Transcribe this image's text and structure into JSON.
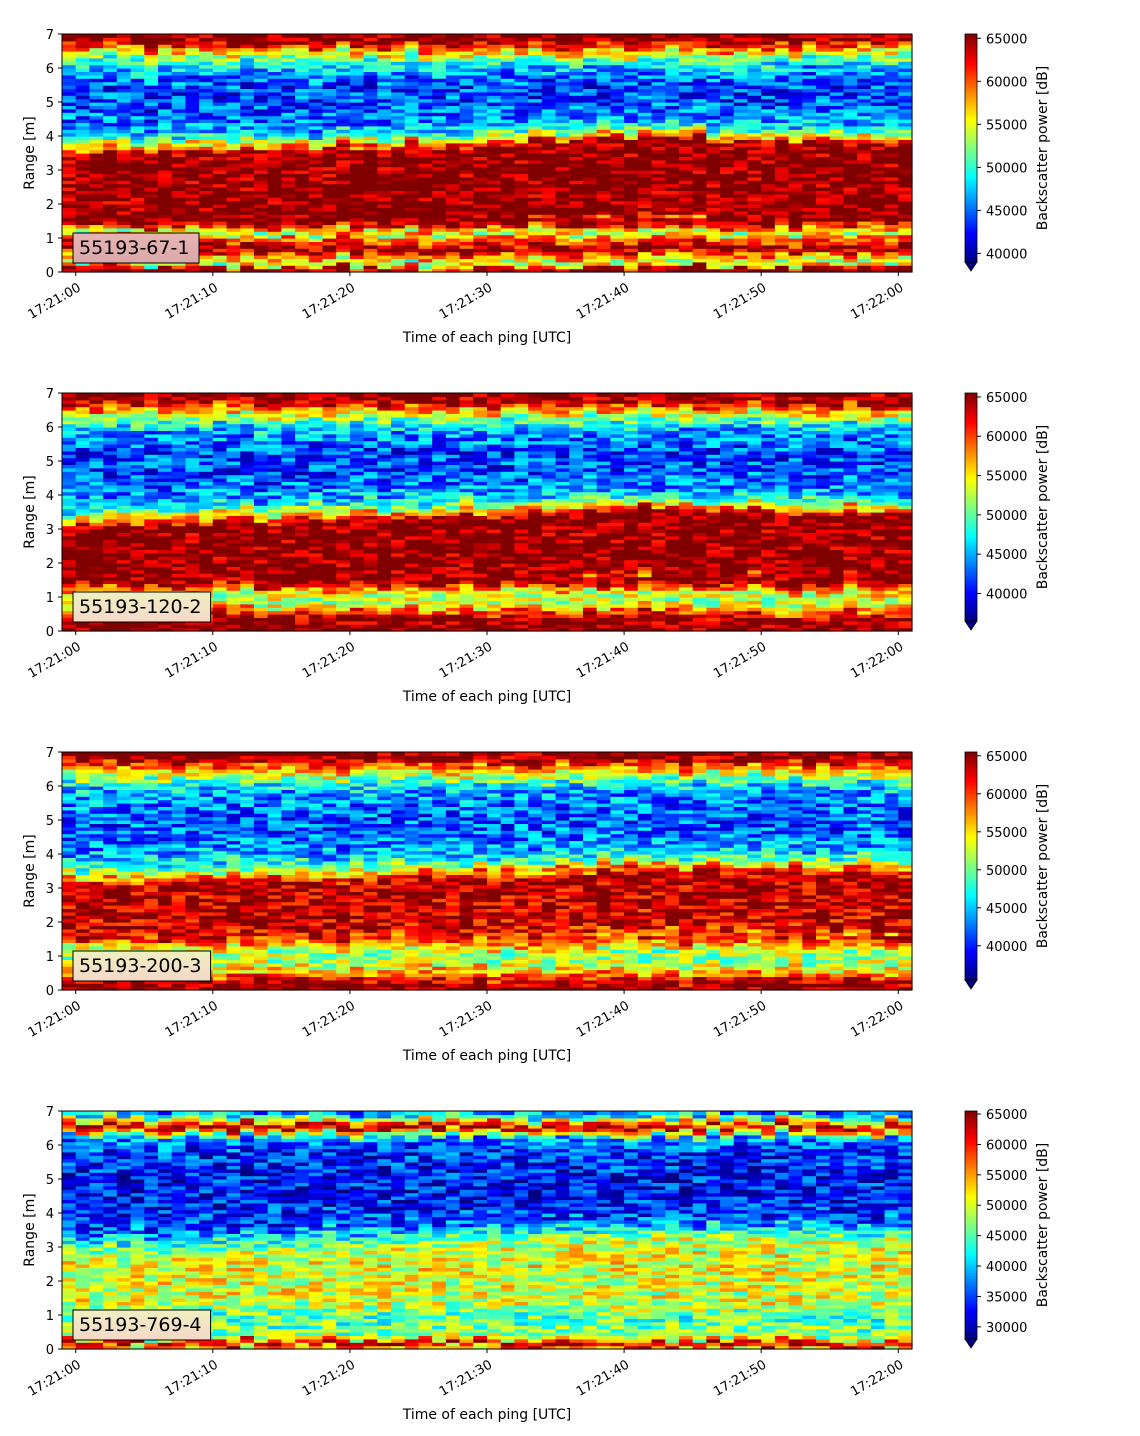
{
  "figure": {
    "colormap": "jet",
    "panels": [
      {
        "label": "55193-67-1",
        "xlabel": "Time of each ping [UTC]",
        "ylabel": "Range [m]",
        "cbar_label": "Backscatter power [dB]"
      },
      {
        "label": "55193-120-2",
        "xlabel": "Time of each ping [UTC]",
        "ylabel": "Range [m]",
        "cbar_label": "Backscatter power [dB]"
      },
      {
        "label": "55193-200-3",
        "xlabel": "Time of each ping [UTC]",
        "ylabel": "Range [m]",
        "cbar_label": "Backscatter power [dB]"
      },
      {
        "label": "55193-769-4",
        "xlabel": "Time of each ping [UTC]",
        "ylabel": "Range [m]",
        "cbar_label": "Backscatter power [dB]"
      }
    ]
  },
  "chart_data": [
    {
      "type": "heatmap",
      "xlabel": "Time of each ping [UTC]",
      "ylabel": "Range [m]",
      "x_ticks": [
        "17:21:00",
        "17:21:10",
        "17:21:20",
        "17:21:30",
        "17:21:40",
        "17:21:50",
        "17:22:00"
      ],
      "xlim_seconds": [
        -1,
        61
      ],
      "y_ticks": [
        0,
        1,
        2,
        3,
        4,
        5,
        6,
        7
      ],
      "ylim": [
        0,
        7
      ],
      "colorbar": {
        "label": "Backscatter power [dB]",
        "ticks": [
          40000,
          45000,
          50000,
          55000,
          60000,
          65000
        ],
        "range": [
          39000,
          65500
        ]
      },
      "annotation": "55193-67-1",
      "range_profile": {
        "range_m": [
          0.1,
          0.25,
          0.7,
          1.05,
          1.15,
          1.25,
          1.45,
          2.4,
          3.35,
          3.55,
          3.8,
          4.1,
          4.8,
          5.4,
          5.9,
          6.3,
          6.55,
          6.8,
          7.0
        ],
        "power": [
          65500,
          52000,
          65500,
          58000,
          53000,
          57000,
          65500,
          65500,
          65500,
          59000,
          51000,
          46500,
          44000,
          44000,
          47000,
          52000,
          58000,
          65500,
          65500
        ]
      },
      "band_edges_over_time": {
        "seconds": [
          0,
          30,
          40,
          60
        ],
        "edge_m": [
          3.45,
          3.8,
          4.1,
          3.75
        ]
      }
    },
    {
      "type": "heatmap",
      "xlabel": "Time of each ping [UTC]",
      "ylabel": "Range [m]",
      "x_ticks": [
        "17:21:00",
        "17:21:10",
        "17:21:20",
        "17:21:30",
        "17:21:40",
        "17:21:50",
        "17:22:00"
      ],
      "xlim_seconds": [
        -1,
        61
      ],
      "y_ticks": [
        0,
        1,
        2,
        3,
        4,
        5,
        6,
        7
      ],
      "ylim": [
        0,
        7
      ],
      "colorbar": {
        "label": "Backscatter power [dB]",
        "ticks": [
          40000,
          45000,
          50000,
          55000,
          60000,
          65000
        ],
        "range": [
          36500,
          65500
        ]
      },
      "annotation": "55193-120-2",
      "range_profile": {
        "range_m": [
          0.1,
          0.25,
          0.45,
          0.75,
          1.0,
          1.25,
          1.45,
          2.2,
          3.05,
          3.25,
          3.5,
          3.8,
          4.5,
          5.2,
          5.9,
          6.3,
          6.55,
          6.8,
          7.0
        ],
        "power": [
          65500,
          65500,
          64000,
          55000,
          52000,
          57000,
          65500,
          65500,
          65500,
          58000,
          50000,
          45000,
          42000,
          42000,
          45000,
          52000,
          58000,
          65500,
          65500
        ]
      },
      "band_edges_over_time": {
        "seconds": [
          0,
          30,
          40,
          60
        ],
        "edge_m": [
          3.1,
          3.4,
          3.65,
          3.5
        ]
      }
    },
    {
      "type": "heatmap",
      "xlabel": "Time of each ping [UTC]",
      "ylabel": "Range [m]",
      "x_ticks": [
        "17:21:00",
        "17:21:10",
        "17:21:20",
        "17:21:30",
        "17:21:40",
        "17:21:50",
        "17:22:00"
      ],
      "xlim_seconds": [
        -1,
        61
      ],
      "y_ticks": [
        0,
        1,
        2,
        3,
        4,
        5,
        6,
        7
      ],
      "ylim": [
        0,
        7
      ],
      "colorbar": {
        "label": "Backscatter power [dB]",
        "ticks": [
          40000,
          45000,
          50000,
          55000,
          60000,
          65000
        ],
        "range": [
          35500,
          65500
        ]
      },
      "annotation": "55193-200-3",
      "range_profile": {
        "range_m": [
          0.1,
          0.25,
          0.45,
          0.8,
          1.1,
          1.35,
          1.6,
          2.3,
          3.0,
          3.25,
          3.5,
          3.8,
          4.5,
          5.2,
          5.9,
          6.3,
          6.55,
          6.8,
          7.0
        ],
        "power": [
          65500,
          64000,
          58000,
          52000,
          51000,
          57000,
          63000,
          63500,
          64000,
          57000,
          50000,
          45000,
          42000,
          42000,
          45000,
          52000,
          58000,
          65500,
          65500
        ]
      },
      "band_edges_over_time": {
        "seconds": [
          0,
          30,
          40,
          60
        ],
        "edge_m": [
          3.05,
          3.35,
          3.55,
          3.45
        ]
      }
    },
    {
      "type": "heatmap",
      "xlabel": "Time of each ping [UTC]",
      "ylabel": "Range [m]",
      "x_ticks": [
        "17:21:00",
        "17:21:10",
        "17:21:20",
        "17:21:30",
        "17:21:40",
        "17:21:50",
        "17:22:00"
      ],
      "xlim_seconds": [
        -1,
        61
      ],
      "y_ticks": [
        0,
        1,
        2,
        3,
        4,
        5,
        6,
        7
      ],
      "ylim": [
        0,
        7
      ],
      "colorbar": {
        "label": "Backscatter power [dB]",
        "ticks": [
          30000,
          35000,
          40000,
          45000,
          50000,
          55000,
          60000,
          65000
        ],
        "range": [
          28000,
          65500
        ]
      },
      "annotation": "55193-769-4",
      "range_profile": {
        "range_m": [
          0.05,
          0.15,
          0.25,
          0.35,
          0.6,
          1.0,
          1.4,
          2.0,
          2.6,
          2.9,
          3.2,
          3.5,
          4.2,
          5.0,
          5.8,
          6.2,
          6.4,
          6.55,
          6.7,
          6.85,
          7.0
        ],
        "power": [
          52000,
          65500,
          60000,
          48000,
          46000,
          45000,
          50000,
          51000,
          50000,
          46000,
          40000,
          35500,
          33000,
          33000,
          34500,
          38000,
          52000,
          65500,
          55000,
          42000,
          38000
        ]
      },
      "band_edges_over_time": {
        "seconds": [
          0,
          30,
          40,
          60
        ],
        "edge_m": [
          3.0,
          3.4,
          3.6,
          3.5
        ]
      }
    }
  ]
}
